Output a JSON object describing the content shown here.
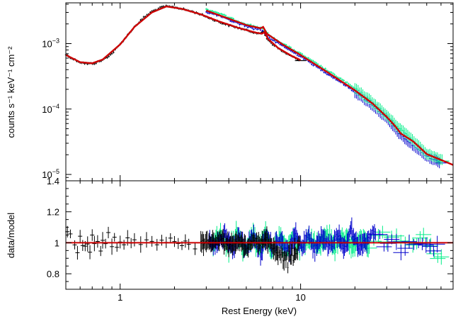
{
  "chart_data": [
    {
      "id": "spectrum",
      "type": "scatter",
      "title": "",
      "xlabel": "",
      "ylabel": "counts s⁻¹ keV⁻¹ cm⁻²",
      "xscale": "log",
      "yscale": "log",
      "xlim": [
        0.5,
        70
      ],
      "ylim": [
        8e-06,
        0.0042
      ],
      "grid": false,
      "legend": "none",
      "ytick_labels": [
        {
          "value": 0.001,
          "mant": "10",
          "exp": "−3"
        },
        {
          "value": 0.0001,
          "mant": "10",
          "exp": "−4"
        },
        {
          "value": 1e-05,
          "mant": "10",
          "exp": "−5"
        }
      ],
      "series": [
        {
          "color": "#000000",
          "kind": "data",
          "points": [
            [
              0.5,
              0.00068
            ],
            [
              0.55,
              0.00058
            ],
            [
              0.6,
              0.00052
            ],
            [
              0.66,
              0.00049
            ],
            [
              0.72,
              0.0005
            ],
            [
              0.8,
              0.00056
            ],
            [
              0.9,
              0.0007
            ],
            [
              1.0,
              0.00098
            ],
            [
              1.1,
              0.00135
            ],
            [
              1.2,
              0.0018
            ],
            [
              1.35,
              0.0025
            ],
            [
              1.5,
              0.0031
            ],
            [
              1.7,
              0.0036
            ],
            [
              1.8,
              0.0037
            ],
            [
              2.0,
              0.0036
            ],
            [
              2.2,
              0.0034
            ],
            [
              2.5,
              0.0031
            ],
            [
              2.8,
              0.0028
            ],
            [
              3.2,
              0.0024
            ],
            [
              3.6,
              0.0021
            ],
            [
              4.0,
              0.0019
            ],
            [
              4.5,
              0.00175
            ],
            [
              5.0,
              0.0016
            ],
            [
              5.6,
              0.00148
            ],
            [
              6.0,
              0.0014
            ],
            [
              6.2,
              0.00155
            ],
            [
              6.5,
              0.0012
            ],
            [
              7.0,
              0.00098
            ],
            [
              7.5,
              0.00085
            ],
            [
              8.0,
              0.00075
            ],
            [
              9.0,
              0.00063
            ],
            [
              10.0,
              0.00055
            ]
          ]
        },
        {
          "color": "#0000cc",
          "kind": "data",
          "points": [
            [
              3.0,
              0.00305
            ],
            [
              3.5,
              0.0027
            ],
            [
              4.0,
              0.0023
            ],
            [
              4.5,
              0.00205
            ],
            [
              5.0,
              0.00185
            ],
            [
              5.5,
              0.0017
            ],
            [
              6.0,
              0.00165
            ],
            [
              6.3,
              0.00145
            ],
            [
              7.0,
              0.00112
            ],
            [
              8.0,
              0.00092
            ],
            [
              9.0,
              0.00075
            ],
            [
              10.0,
              0.00064
            ],
            [
              12.0,
              0.00046
            ],
            [
              14.0,
              0.00035
            ],
            [
              17.0,
              0.00025
            ],
            [
              20.0,
              0.000182
            ],
            [
              25.0,
              0.000115
            ],
            [
              30.0,
              7.2e-05
            ],
            [
              35.0,
              4.3e-05
            ],
            [
              40.0,
              3.1e-05
            ],
            [
              50.0,
              1.9e-05
            ],
            [
              60.0,
              1.5e-05
            ]
          ]
        },
        {
          "color": "#00ee88",
          "kind": "data",
          "points": [
            [
              3.0,
              0.00335
            ],
            [
              3.5,
              0.00295
            ],
            [
              4.0,
              0.0025
            ],
            [
              4.5,
              0.0022
            ],
            [
              5.0,
              0.002
            ],
            [
              5.5,
              0.00185
            ],
            [
              6.0,
              0.00175
            ],
            [
              6.3,
              0.00158
            ],
            [
              7.0,
              0.00122
            ],
            [
              8.0,
              0.001
            ],
            [
              9.0,
              0.00082
            ],
            [
              10.0,
              0.0007
            ],
            [
              12.0,
              0.00051
            ],
            [
              14.0,
              0.00039
            ],
            [
              17.0,
              0.00028
            ],
            [
              20.0,
              0.000205
            ],
            [
              25.0,
              0.000128
            ],
            [
              30.0,
              8e-05
            ],
            [
              35.0,
              5.2e-05
            ],
            [
              40.0,
              3.8e-05
            ],
            [
              50.0,
              2.1e-05
            ],
            [
              62.0,
              1.6e-05
            ]
          ]
        },
        {
          "color": "#cc0000",
          "kind": "model",
          "points": [
            [
              0.5,
              0.00067
            ],
            [
              0.6,
              0.00052
            ],
            [
              0.7,
              0.0005
            ],
            [
              0.8,
              0.00057
            ],
            [
              1.0,
              0.00097
            ],
            [
              1.2,
              0.0018
            ],
            [
              1.5,
              0.003
            ],
            [
              1.8,
              0.0037
            ],
            [
              2.2,
              0.0034
            ],
            [
              2.8,
              0.0028
            ],
            [
              3.5,
              0.0022
            ],
            [
              4.5,
              0.00175
            ],
            [
              5.6,
              0.00148
            ],
            [
              6.1,
              0.00142
            ],
            [
              6.3,
              0.0015
            ],
            [
              6.6,
              0.00118
            ],
            [
              7.5,
              0.00086
            ],
            [
              9.0,
              0.00064
            ],
            [
              10.0,
              0.00056
            ]
          ]
        },
        {
          "color": "#cc0000",
          "kind": "model",
          "points": [
            [
              3.0,
              0.0032
            ],
            [
              4.0,
              0.0024
            ],
            [
              5.0,
              0.00192
            ],
            [
              6.0,
              0.00172
            ],
            [
              6.2,
              0.0018
            ],
            [
              6.5,
              0.00142
            ],
            [
              8.0,
              0.00096
            ],
            [
              10.0,
              0.00067
            ],
            [
              14.0,
              0.00037
            ],
            [
              20.0,
              0.000193
            ],
            [
              25.0,
              0.000122
            ],
            [
              30.0,
              7.6e-05
            ],
            [
              33.0,
              5.7e-05
            ],
            [
              36.0,
              4.2e-05
            ],
            [
              42.0,
              3.2e-05
            ],
            [
              50.0,
              2.05e-05
            ],
            [
              70.0,
              1.4e-05
            ]
          ]
        }
      ]
    },
    {
      "id": "ratio",
      "type": "scatter",
      "title": "",
      "xlabel": "Rest Energy (keV)",
      "ylabel": "data/model",
      "xscale": "log",
      "yscale": "linear",
      "xlim": [
        0.5,
        70
      ],
      "ylim": [
        0.7,
        1.4
      ],
      "grid": false,
      "legend": "none",
      "xtick_labels": [
        {
          "value": 1,
          "label": "1"
        },
        {
          "value": 10,
          "label": "10"
        }
      ],
      "ytick_labels": [
        {
          "value": 1.4,
          "label": "1.4"
        },
        {
          "value": 1.2,
          "label": "1.2"
        },
        {
          "value": 1.0,
          "label": "1"
        },
        {
          "value": 0.8,
          "label": "0.8"
        }
      ],
      "reference_line": {
        "value": 1.0,
        "color": "#cc0000"
      },
      "series": [
        {
          "color": "#000000",
          "points": [
            [
              0.51,
              1.05
            ],
            [
              0.53,
              1.08
            ],
            [
              0.56,
              0.98
            ],
            [
              0.58,
              0.95
            ],
            [
              0.6,
              1.02
            ],
            [
              0.62,
              0.97
            ],
            [
              0.64,
              0.93
            ],
            [
              0.66,
              1.01
            ],
            [
              0.68,
              0.96
            ],
            [
              0.7,
              1.08
            ],
            [
              0.72,
              0.97
            ],
            [
              0.75,
              1.0
            ],
            [
              0.78,
              0.92
            ],
            [
              0.8,
              1.05
            ],
            [
              0.83,
              1.02
            ],
            [
              0.86,
              1.06
            ],
            [
              0.9,
              0.99
            ],
            [
              0.93,
              1.03
            ],
            [
              0.96,
              0.97
            ],
            [
              1.0,
              1.02
            ],
            [
              1.05,
              0.99
            ],
            [
              1.1,
              1.03
            ],
            [
              1.15,
              0.98
            ],
            [
              1.2,
              1.01
            ],
            [
              1.3,
              0.99
            ],
            [
              1.4,
              1.0
            ],
            [
              1.5,
              1.02
            ],
            [
              1.6,
              0.99
            ],
            [
              1.7,
              1.01
            ],
            [
              1.8,
              0.98
            ],
            [
              1.9,
              1.02
            ],
            [
              2.0,
              1.0
            ],
            [
              2.2,
              0.99
            ],
            [
              2.4,
              1.01
            ],
            [
              2.6,
              0.98
            ],
            [
              2.8,
              1.02
            ],
            [
              3.0,
              0.99
            ],
            [
              3.5,
              1.03
            ],
            [
              4.0,
              0.98
            ],
            [
              4.5,
              1.01
            ],
            [
              5.0,
              0.97
            ],
            [
              5.5,
              1.02
            ],
            [
              6.0,
              0.99
            ],
            [
              6.5,
              1.04
            ],
            [
              7.0,
              0.96
            ],
            [
              7.5,
              0.93
            ],
            [
              8.0,
              0.9
            ],
            [
              8.5,
              0.88
            ],
            [
              9.0,
              0.9
            ],
            [
              9.5,
              0.95
            ],
            [
              10.0,
              1.0
            ]
          ]
        },
        {
          "color": "#0000cc",
          "points": [
            [
              3.1,
              1.02
            ],
            [
              3.4,
              0.97
            ],
            [
              3.8,
              1.05
            ],
            [
              4.2,
              0.95
            ],
            [
              4.6,
              1.04
            ],
            [
              5.0,
              0.96
            ],
            [
              5.5,
              1.06
            ],
            [
              6.0,
              0.94
            ],
            [
              6.5,
              1.05
            ],
            [
              7.0,
              0.96
            ],
            [
              7.8,
              1.03
            ],
            [
              8.5,
              0.92
            ],
            [
              9.3,
              1.05
            ],
            [
              10.2,
              0.97
            ],
            [
              11.0,
              1.06
            ],
            [
              12.0,
              0.95
            ],
            [
              13.0,
              1.04
            ],
            [
              14.5,
              0.96
            ],
            [
              16.0,
              1.05
            ],
            [
              17.5,
              0.95
            ],
            [
              19.0,
              1.1
            ],
            [
              21.0,
              0.97
            ],
            [
              23.0,
              1.02
            ],
            [
              26.0,
              1.08
            ],
            [
              29.0,
              0.98
            ],
            [
              32.0,
              1.04
            ],
            [
              36.0,
              0.96
            ],
            [
              40.0,
              0.99
            ],
            [
              45.0,
              1.0
            ],
            [
              52.0,
              0.97
            ],
            [
              60.0,
              0.95
            ]
          ]
        },
        {
          "color": "#00ee88",
          "points": [
            [
              3.2,
              0.98
            ],
            [
              3.6,
              1.06
            ],
            [
              4.0,
              0.95
            ],
            [
              4.4,
              1.07
            ],
            [
              4.9,
              0.94
            ],
            [
              5.4,
              1.05
            ],
            [
              5.9,
              0.95
            ],
            [
              6.4,
              1.07
            ],
            [
              7.0,
              0.94
            ],
            [
              7.6,
              1.05
            ],
            [
              8.3,
              0.95
            ],
            [
              9.0,
              1.06
            ],
            [
              10.0,
              0.94
            ],
            [
              11.5,
              1.05
            ],
            [
              12.5,
              0.96
            ],
            [
              14.0,
              1.07
            ],
            [
              15.5,
              0.95
            ],
            [
              17.0,
              1.06
            ],
            [
              19.5,
              0.96
            ],
            [
              22.0,
              1.05
            ],
            [
              24.0,
              0.95
            ],
            [
              27.0,
              1.07
            ],
            [
              30.0,
              1.02
            ],
            [
              34.0,
              1.05
            ],
            [
              38.0,
              0.97
            ],
            [
              44.0,
              0.99
            ],
            [
              48.0,
              1.05
            ],
            [
              55.0,
              0.93
            ],
            [
              63.0,
              0.91
            ]
          ]
        }
      ]
    }
  ]
}
